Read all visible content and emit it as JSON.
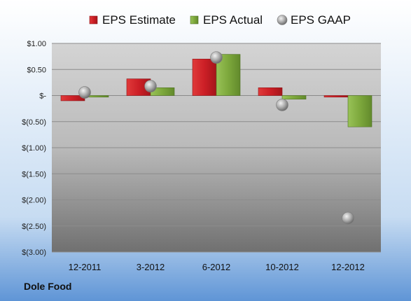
{
  "chart_data": {
    "type": "bar",
    "categories": [
      "12-2011",
      "3-2012",
      "6-2012",
      "10-2012",
      "12-2012"
    ],
    "series": [
      {
        "name": "EPS Estimate",
        "kind": "bar",
        "color": "#cc1f26",
        "values": [
          -0.1,
          0.32,
          0.7,
          0.15,
          -0.03
        ]
      },
      {
        "name": "EPS Actual",
        "kind": "bar",
        "color": "#7da83c",
        "values": [
          -0.03,
          0.15,
          0.79,
          -0.07,
          -0.6
        ]
      },
      {
        "name": "EPS GAAP",
        "kind": "marker",
        "color": "#a8a8a8",
        "values": [
          0.06,
          0.18,
          0.73,
          -0.18,
          -2.35
        ]
      }
    ],
    "yticks": [
      1.0,
      0.5,
      0,
      -0.5,
      -1.0,
      -1.5,
      -2.0,
      -2.5,
      -3.0
    ],
    "ytick_labels": [
      "$1.00",
      "$0.50",
      "$-",
      "$(0.50)",
      "$(1.00)",
      "$(1.50)",
      "$(2.00)",
      "$(2.50)",
      "$(3.00)"
    ],
    "ylim": [
      -3.0,
      1.0
    ],
    "grid": true,
    "legend": "top"
  },
  "company": "Dole Food"
}
